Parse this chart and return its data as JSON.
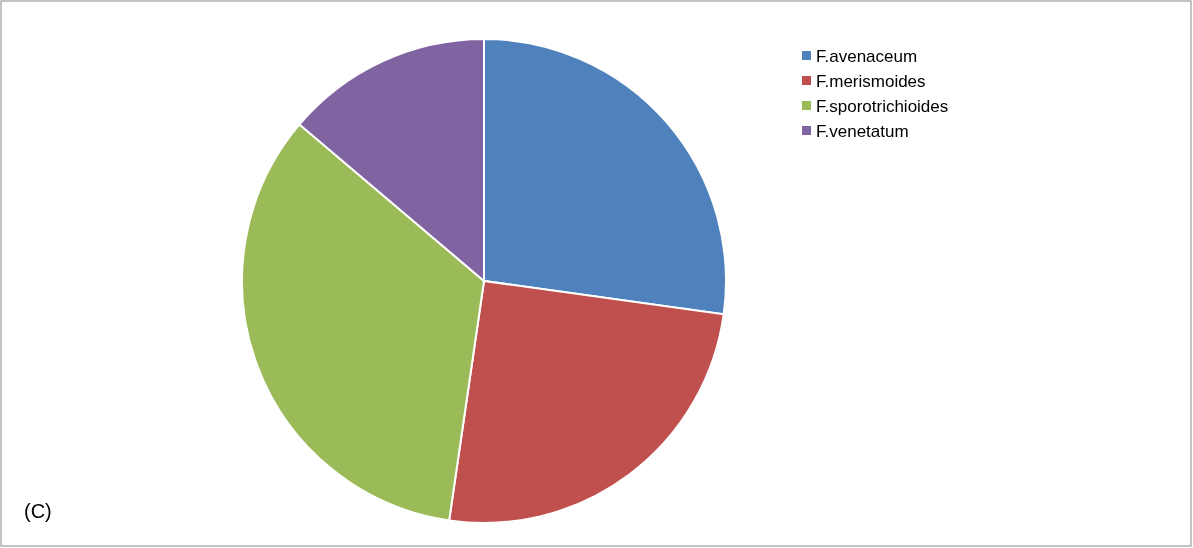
{
  "chart_data": {
    "type": "pie",
    "categories": [
      "F.avenaceum",
      "F.merismoides",
      "F.sporotrichioides",
      "F.venetatum"
    ],
    "values": [
      27.2,
      25.1,
      33.9,
      13.8
    ],
    "colors": [
      "#4f81bd",
      "#c0504d",
      "#9bbb59",
      "#8064a2"
    ],
    "legend": "top right",
    "annotations": [
      "(C)"
    ]
  }
}
